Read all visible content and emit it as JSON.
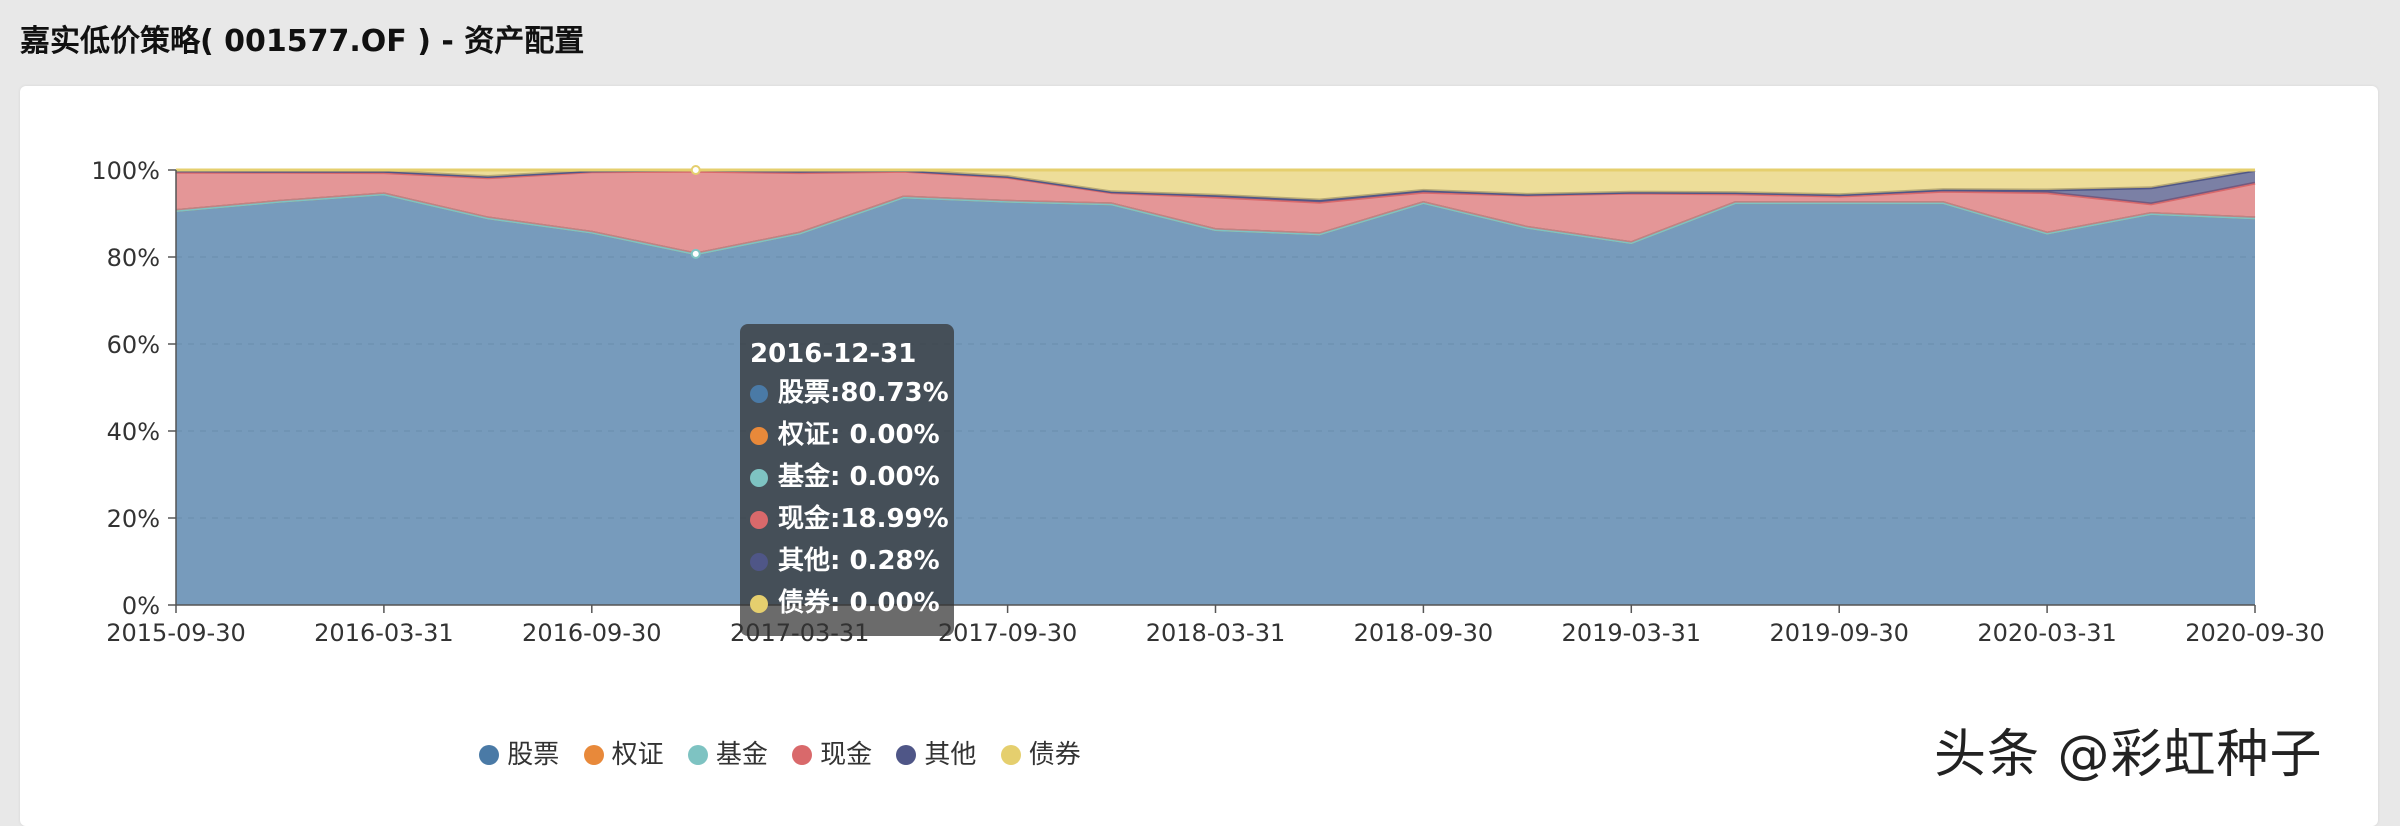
{
  "page": {
    "title": "嘉实低价策略( 001577.OF ) - 资产配置"
  },
  "colors": {
    "stock": "#4a7aa6",
    "warrant": "#e8893a",
    "fund": "#7ec3c2",
    "cash": "#d9696b",
    "other": "#4f5687",
    "bond": "#e5cf6e"
  },
  "chart_data": {
    "type": "area",
    "stacked": true,
    "title": "",
    "xlabel": "",
    "ylabel": "",
    "ylim": [
      0,
      100
    ],
    "y_ticks": [
      "0%",
      "20%",
      "40%",
      "60%",
      "80%",
      "100%"
    ],
    "x": [
      "2015-09-30",
      "2015-12-31",
      "2016-03-31",
      "2016-06-30",
      "2016-09-30",
      "2016-12-31",
      "2017-03-31",
      "2017-06-30",
      "2017-09-30",
      "2017-12-31",
      "2018-03-31",
      "2018-06-30",
      "2018-09-30",
      "2018-12-31",
      "2019-03-31",
      "2019-06-30",
      "2019-09-30",
      "2019-12-31",
      "2020-03-31",
      "2020-06-30",
      "2020-09-30"
    ],
    "x_tick_labels": [
      "2015-09-30",
      "2016-03-31",
      "2016-09-30",
      "2017-03-31",
      "2017-09-30",
      "2018-03-31",
      "2018-09-30",
      "2019-03-31",
      "2019-09-30",
      "2020-03-31",
      "2020-09-30"
    ],
    "series": [
      {
        "name": "股票",
        "key": "stock",
        "values": [
          90.7,
          92.8,
          94.5,
          89.0,
          85.7,
          80.73,
          85.5,
          93.8,
          92.8,
          92.2,
          86.3,
          85.3,
          92.5,
          86.8,
          83.3,
          92.5,
          92.5,
          92.5,
          85.5,
          90.0,
          89.0
        ]
      },
      {
        "name": "权证",
        "key": "warrant",
        "values": [
          0,
          0,
          0,
          0,
          0,
          0,
          0,
          0,
          0,
          0,
          0,
          0,
          0,
          0,
          0,
          0,
          0,
          0,
          0,
          0,
          0
        ]
      },
      {
        "name": "基金",
        "key": "fund",
        "values": [
          0,
          0,
          0,
          0,
          0,
          0,
          0,
          0,
          0,
          0,
          0,
          0,
          0,
          0,
          0,
          0,
          0,
          0,
          0,
          0,
          0
        ]
      },
      {
        "name": "现金",
        "key": "cash",
        "values": [
          8.8,
          6.7,
          4.9,
          9.2,
          13.9,
          18.99,
          13.9,
          5.9,
          5.5,
          2.6,
          7.5,
          7.3,
          2.4,
          7.4,
          11.4,
          2.0,
          1.5,
          2.6,
          9.3,
          2.2,
          8.0
        ]
      },
      {
        "name": "其他",
        "key": "other",
        "values": [
          0.3,
          0.2,
          0.3,
          0.3,
          0.2,
          0.28,
          0.3,
          0.2,
          0.2,
          0.2,
          0.4,
          0.5,
          0.4,
          0.2,
          0.2,
          0.3,
          0.3,
          0.4,
          0.6,
          3.7,
          2.9
        ]
      },
      {
        "name": "债券",
        "key": "bond",
        "values": [
          0.2,
          0.3,
          0.3,
          1.5,
          0.2,
          0.0,
          0.3,
          0.1,
          1.5,
          5.0,
          5.8,
          6.9,
          4.7,
          5.6,
          5.1,
          5.2,
          5.7,
          4.5,
          4.6,
          4.1,
          0.1
        ]
      }
    ],
    "legend_position": "bottom-center",
    "tooltip": {
      "date": "2016-12-31",
      "rows": [
        {
          "label": "股票:80.73%",
          "key": "stock"
        },
        {
          "label": "权证:  0.00%",
          "key": "warrant"
        },
        {
          "label": "基金:  0.00%",
          "key": "fund"
        },
        {
          "label": "现金:18.99%",
          "key": "cash"
        },
        {
          "label": "其他:  0.28%",
          "key": "other"
        },
        {
          "label": "债券:  0.00%",
          "key": "bond"
        }
      ]
    }
  },
  "legend": [
    {
      "label": "股票",
      "key": "stock"
    },
    {
      "label": "权证",
      "key": "warrant"
    },
    {
      "label": "基金",
      "key": "fund"
    },
    {
      "label": "现金",
      "key": "cash"
    },
    {
      "label": "其他",
      "key": "other"
    },
    {
      "label": "债券",
      "key": "bond"
    }
  ],
  "watermark": "头条 @彩虹种子"
}
